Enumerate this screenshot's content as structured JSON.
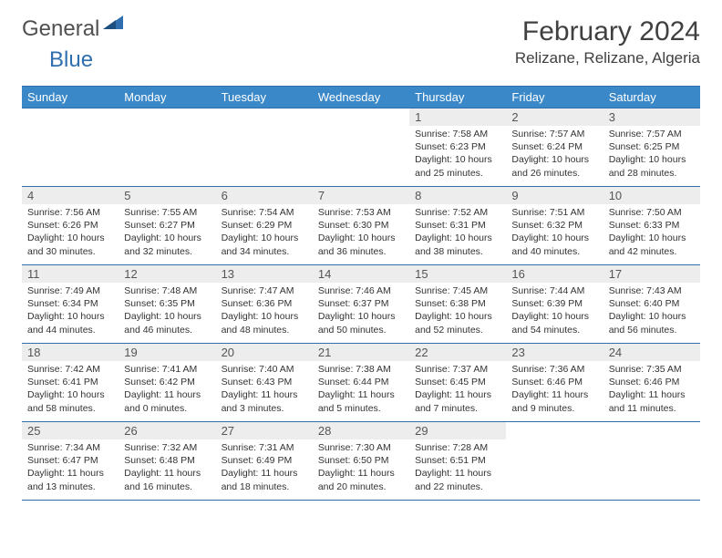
{
  "logo": {
    "word1": "General",
    "word2": "Blue"
  },
  "header": {
    "title": "February 2024",
    "location": "Relizane, Relizane, Algeria"
  },
  "colors": {
    "header_bg": "#3a88c8",
    "header_text": "#ffffff",
    "border": "#2f6fb0",
    "daynum_bg": "#ededed",
    "daynum_text": "#555555",
    "body_text": "#333333",
    "title_text": "#404040",
    "logo_gray": "#505050",
    "logo_blue": "#2f6fb0",
    "page_bg": "#ffffff"
  },
  "weekdays": [
    "Sunday",
    "Monday",
    "Tuesday",
    "Wednesday",
    "Thursday",
    "Friday",
    "Saturday"
  ],
  "weeks": [
    [
      {
        "n": "",
        "sr": "",
        "ss": "",
        "dl": ""
      },
      {
        "n": "",
        "sr": "",
        "ss": "",
        "dl": ""
      },
      {
        "n": "",
        "sr": "",
        "ss": "",
        "dl": ""
      },
      {
        "n": "",
        "sr": "",
        "ss": "",
        "dl": ""
      },
      {
        "n": "1",
        "sr": "Sunrise: 7:58 AM",
        "ss": "Sunset: 6:23 PM",
        "dl": "Daylight: 10 hours and 25 minutes."
      },
      {
        "n": "2",
        "sr": "Sunrise: 7:57 AM",
        "ss": "Sunset: 6:24 PM",
        "dl": "Daylight: 10 hours and 26 minutes."
      },
      {
        "n": "3",
        "sr": "Sunrise: 7:57 AM",
        "ss": "Sunset: 6:25 PM",
        "dl": "Daylight: 10 hours and 28 minutes."
      }
    ],
    [
      {
        "n": "4",
        "sr": "Sunrise: 7:56 AM",
        "ss": "Sunset: 6:26 PM",
        "dl": "Daylight: 10 hours and 30 minutes."
      },
      {
        "n": "5",
        "sr": "Sunrise: 7:55 AM",
        "ss": "Sunset: 6:27 PM",
        "dl": "Daylight: 10 hours and 32 minutes."
      },
      {
        "n": "6",
        "sr": "Sunrise: 7:54 AM",
        "ss": "Sunset: 6:29 PM",
        "dl": "Daylight: 10 hours and 34 minutes."
      },
      {
        "n": "7",
        "sr": "Sunrise: 7:53 AM",
        "ss": "Sunset: 6:30 PM",
        "dl": "Daylight: 10 hours and 36 minutes."
      },
      {
        "n": "8",
        "sr": "Sunrise: 7:52 AM",
        "ss": "Sunset: 6:31 PM",
        "dl": "Daylight: 10 hours and 38 minutes."
      },
      {
        "n": "9",
        "sr": "Sunrise: 7:51 AM",
        "ss": "Sunset: 6:32 PM",
        "dl": "Daylight: 10 hours and 40 minutes."
      },
      {
        "n": "10",
        "sr": "Sunrise: 7:50 AM",
        "ss": "Sunset: 6:33 PM",
        "dl": "Daylight: 10 hours and 42 minutes."
      }
    ],
    [
      {
        "n": "11",
        "sr": "Sunrise: 7:49 AM",
        "ss": "Sunset: 6:34 PM",
        "dl": "Daylight: 10 hours and 44 minutes."
      },
      {
        "n": "12",
        "sr": "Sunrise: 7:48 AM",
        "ss": "Sunset: 6:35 PM",
        "dl": "Daylight: 10 hours and 46 minutes."
      },
      {
        "n": "13",
        "sr": "Sunrise: 7:47 AM",
        "ss": "Sunset: 6:36 PM",
        "dl": "Daylight: 10 hours and 48 minutes."
      },
      {
        "n": "14",
        "sr": "Sunrise: 7:46 AM",
        "ss": "Sunset: 6:37 PM",
        "dl": "Daylight: 10 hours and 50 minutes."
      },
      {
        "n": "15",
        "sr": "Sunrise: 7:45 AM",
        "ss": "Sunset: 6:38 PM",
        "dl": "Daylight: 10 hours and 52 minutes."
      },
      {
        "n": "16",
        "sr": "Sunrise: 7:44 AM",
        "ss": "Sunset: 6:39 PM",
        "dl": "Daylight: 10 hours and 54 minutes."
      },
      {
        "n": "17",
        "sr": "Sunrise: 7:43 AM",
        "ss": "Sunset: 6:40 PM",
        "dl": "Daylight: 10 hours and 56 minutes."
      }
    ],
    [
      {
        "n": "18",
        "sr": "Sunrise: 7:42 AM",
        "ss": "Sunset: 6:41 PM",
        "dl": "Daylight: 10 hours and 58 minutes."
      },
      {
        "n": "19",
        "sr": "Sunrise: 7:41 AM",
        "ss": "Sunset: 6:42 PM",
        "dl": "Daylight: 11 hours and 0 minutes."
      },
      {
        "n": "20",
        "sr": "Sunrise: 7:40 AM",
        "ss": "Sunset: 6:43 PM",
        "dl": "Daylight: 11 hours and 3 minutes."
      },
      {
        "n": "21",
        "sr": "Sunrise: 7:38 AM",
        "ss": "Sunset: 6:44 PM",
        "dl": "Daylight: 11 hours and 5 minutes."
      },
      {
        "n": "22",
        "sr": "Sunrise: 7:37 AM",
        "ss": "Sunset: 6:45 PM",
        "dl": "Daylight: 11 hours and 7 minutes."
      },
      {
        "n": "23",
        "sr": "Sunrise: 7:36 AM",
        "ss": "Sunset: 6:46 PM",
        "dl": "Daylight: 11 hours and 9 minutes."
      },
      {
        "n": "24",
        "sr": "Sunrise: 7:35 AM",
        "ss": "Sunset: 6:46 PM",
        "dl": "Daylight: 11 hours and 11 minutes."
      }
    ],
    [
      {
        "n": "25",
        "sr": "Sunrise: 7:34 AM",
        "ss": "Sunset: 6:47 PM",
        "dl": "Daylight: 11 hours and 13 minutes."
      },
      {
        "n": "26",
        "sr": "Sunrise: 7:32 AM",
        "ss": "Sunset: 6:48 PM",
        "dl": "Daylight: 11 hours and 16 minutes."
      },
      {
        "n": "27",
        "sr": "Sunrise: 7:31 AM",
        "ss": "Sunset: 6:49 PM",
        "dl": "Daylight: 11 hours and 18 minutes."
      },
      {
        "n": "28",
        "sr": "Sunrise: 7:30 AM",
        "ss": "Sunset: 6:50 PM",
        "dl": "Daylight: 11 hours and 20 minutes."
      },
      {
        "n": "29",
        "sr": "Sunrise: 7:28 AM",
        "ss": "Sunset: 6:51 PM",
        "dl": "Daylight: 11 hours and 22 minutes."
      },
      {
        "n": "",
        "sr": "",
        "ss": "",
        "dl": ""
      },
      {
        "n": "",
        "sr": "",
        "ss": "",
        "dl": ""
      }
    ]
  ]
}
